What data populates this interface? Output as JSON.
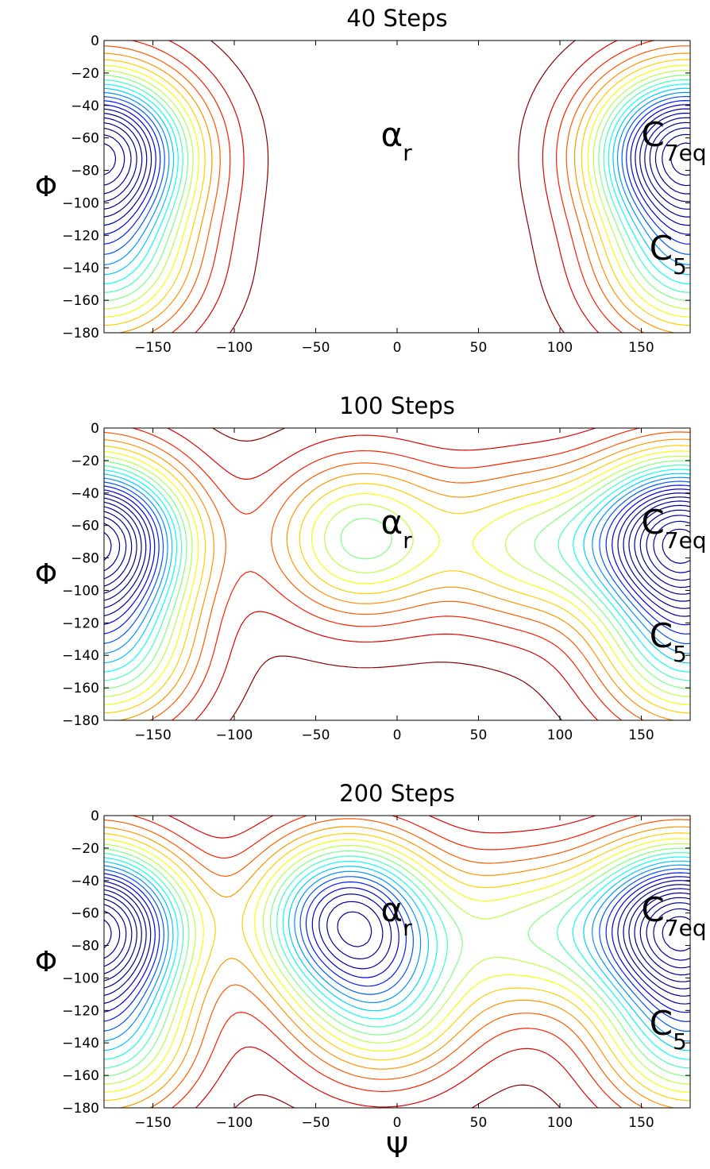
{
  "chart_data": [
    {
      "type": "contour",
      "title": "40 Steps",
      "xlabel": "",
      "ylabel": "Φ",
      "xlim": [
        -180,
        180
      ],
      "ylim": [
        -180,
        0
      ],
      "xticks": [
        -150,
        -100,
        -50,
        0,
        50,
        100,
        150
      ],
      "yticks": [
        0,
        -20,
        -40,
        -60,
        -80,
        -100,
        -120,
        -140,
        -160,
        -180
      ],
      "annotations": [
        {
          "main": "α",
          "sub": "r",
          "x": -10,
          "y": -65
        },
        {
          "main": "C",
          "sub": "7eq",
          "x": 150,
          "y": -65
        },
        {
          "main": "C",
          "sub": "5",
          "x": 155,
          "y": -135
        }
      ],
      "basins": [
        {
          "x": 175,
          "y": -68,
          "depth": 11
        },
        {
          "x": -180,
          "y": -68,
          "depth": 11
        },
        {
          "x": 178,
          "y": -138,
          "depth": 5
        },
        {
          "x": -178,
          "y": -138,
          "depth": 5
        }
      ],
      "colormap": "jet"
    },
    {
      "type": "contour",
      "title": "100 Steps",
      "xlabel": "",
      "ylabel": "Φ",
      "xlim": [
        -180,
        180
      ],
      "ylim": [
        -180,
        0
      ],
      "xticks": [
        -150,
        -100,
        -50,
        0,
        50,
        100,
        150
      ],
      "yticks": [
        0,
        -20,
        -40,
        -60,
        -80,
        -100,
        -120,
        -140,
        -160,
        -180
      ],
      "annotations": [
        {
          "main": "α",
          "sub": "r",
          "x": -10,
          "y": -65
        },
        {
          "main": "C",
          "sub": "7eq",
          "x": 150,
          "y": -65
        },
        {
          "main": "C",
          "sub": "5",
          "x": 155,
          "y": -135
        }
      ],
      "basins": [
        {
          "x": -22,
          "y": -68,
          "depth": 9
        },
        {
          "x": 170,
          "y": -68,
          "depth": 12
        },
        {
          "x": -180,
          "y": -68,
          "depth": 11
        },
        {
          "x": 80,
          "y": -72,
          "depth": 7
        },
        {
          "x": 178,
          "y": -138,
          "depth": 5
        },
        {
          "x": -178,
          "y": -138,
          "depth": 5
        }
      ],
      "colormap": "jet"
    },
    {
      "type": "contour",
      "title": "200 Steps",
      "xlabel": "Ψ",
      "ylabel": "Φ",
      "xlim": [
        -180,
        180
      ],
      "ylim": [
        -180,
        0
      ],
      "xticks": [
        -150,
        -100,
        -50,
        0,
        50,
        100,
        150
      ],
      "yticks": [
        0,
        -20,
        -40,
        -60,
        -80,
        -100,
        -120,
        -140,
        -160,
        -180
      ],
      "annotations": [
        {
          "main": "α",
          "sub": "r",
          "x": -10,
          "y": -65
        },
        {
          "main": "C",
          "sub": "7eq",
          "x": 150,
          "y": -65
        },
        {
          "main": "C",
          "sub": "5",
          "x": 155,
          "y": -135
        }
      ],
      "basins": [
        {
          "x": -30,
          "y": -62,
          "depth": 17
        },
        {
          "x": -8,
          "y": -118,
          "depth": 8
        },
        {
          "x": 170,
          "y": -68,
          "depth": 12
        },
        {
          "x": -180,
          "y": -68,
          "depth": 11
        },
        {
          "x": 80,
          "y": -72,
          "depth": 7
        },
        {
          "x": 178,
          "y": -138,
          "depth": 5
        },
        {
          "x": -178,
          "y": -138,
          "depth": 5
        }
      ],
      "colormap": "jet"
    }
  ]
}
